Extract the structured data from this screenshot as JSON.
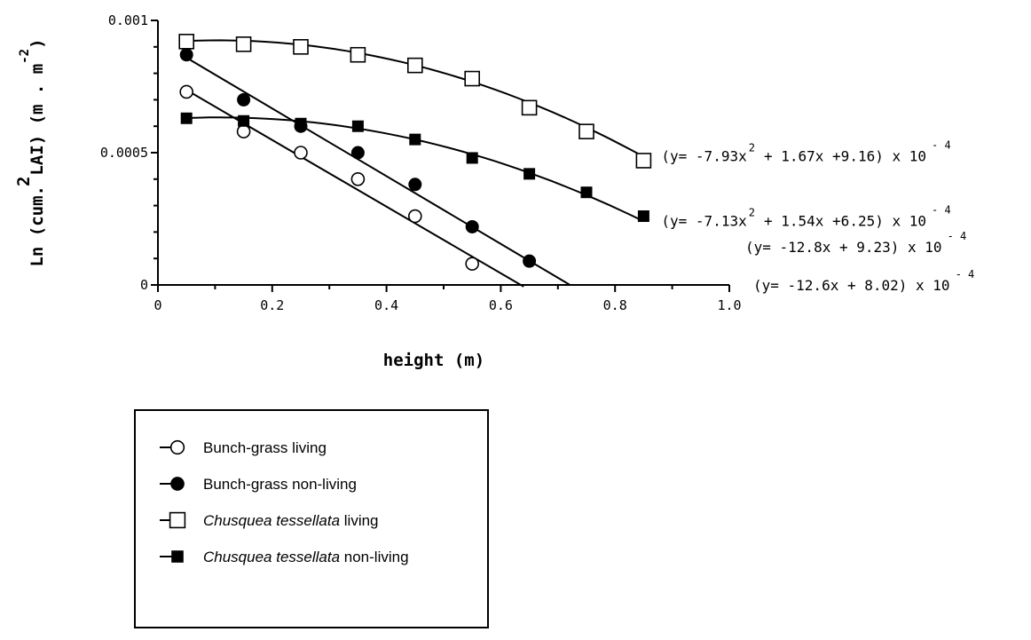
{
  "chart_data": {
    "type": "scatter",
    "xlabel": "height (m)",
    "ylabel": "Ln (cum. LAI) (m². m⁻²)",
    "ylabel_parts": {
      "main": "Ln (cum. LAI) (m . m",
      "close": ")",
      "sup1": "2",
      "sup2": "-2"
    },
    "xlim": [
      0,
      1.0
    ],
    "ylim": [
      0,
      0.001
    ],
    "x_ticks": [
      0,
      0.2,
      0.4,
      0.6,
      0.8,
      1.0
    ],
    "x_tick_labels": [
      "0",
      "0.2",
      "0.4",
      "0.6",
      "0.8",
      "1.0"
    ],
    "y_ticks": [
      0,
      0.0005,
      0.001
    ],
    "y_tick_labels": [
      "0",
      "0.0005",
      "0.001"
    ],
    "grid": false,
    "legend_position": "bottom-left",
    "series": [
      {
        "name": "Bunch-grass living",
        "name_parts": {
          "italic": "",
          "rest": "Bunch-grass living"
        },
        "marker": "open-circle",
        "x": [
          0.05,
          0.15,
          0.25,
          0.35,
          0.45,
          0.55
        ],
        "y": [
          0.00073,
          0.00058,
          0.0005,
          0.0004,
          0.00026,
          8e-05
        ],
        "fit_type": "linear",
        "fit": [
          0.0008,
          -0.00126
        ],
        "fit_x": [
          0.05,
          0.64
        ],
        "equation": {
          "text": "(y= -12.6x + 8.02) x 10",
          "exp": "- 4"
        }
      },
      {
        "name": "Bunch-grass non-living",
        "name_parts": {
          "italic": "",
          "rest": "Bunch-grass non-living"
        },
        "marker": "filled-circle",
        "x": [
          0.05,
          0.15,
          0.25,
          0.35,
          0.45,
          0.55,
          0.65
        ],
        "y": [
          0.00087,
          0.0007,
          0.0006,
          0.0005,
          0.00038,
          0.00022,
          9e-05
        ],
        "fit_type": "linear",
        "fit": [
          0.000923,
          -0.00128
        ],
        "fit_x": [
          0.05,
          0.722
        ],
        "equation": {
          "text": "(y= -12.8x + 9.23) x 10",
          "exp": "- 4"
        }
      },
      {
        "name": "Chusquea tessellata living",
        "name_parts": {
          "italic": "Chusquea tessellata",
          "rest": " living"
        },
        "marker": "open-square",
        "x": [
          0.05,
          0.15,
          0.25,
          0.35,
          0.45,
          0.55,
          0.65,
          0.75,
          0.85
        ],
        "y": [
          0.00092,
          0.00091,
          0.0009,
          0.00087,
          0.00083,
          0.00078,
          0.00067,
          0.00058,
          0.00047
        ],
        "fit_type": "quadratic",
        "fit": [
          0.000916,
          0.000167,
          -0.000793
        ],
        "fit_x": [
          0.05,
          0.85
        ],
        "equation": {
          "text": "(y= -7.93x  + 1.67x +9.16) x 10",
          "sup": "2",
          "exp": "- 4"
        }
      },
      {
        "name": "Chusquea tessellata non-living",
        "name_parts": {
          "italic": "Chusquea tessellata",
          "rest": " non-living"
        },
        "marker": "filled-square",
        "x": [
          0.05,
          0.15,
          0.25,
          0.35,
          0.45,
          0.55,
          0.65,
          0.75,
          0.85
        ],
        "y": [
          0.00063,
          0.00062,
          0.00061,
          0.0006,
          0.00055,
          0.00048,
          0.00042,
          0.00035,
          0.00026
        ],
        "fit_type": "quadratic",
        "fit": [
          0.000625,
          0.000154,
          -0.000713
        ],
        "fit_x": [
          0.05,
          0.85
        ],
        "equation": {
          "text": "(y= -7.13x  + 1.54x +6.25) x 10",
          "sup": "2",
          "exp": "- 4"
        }
      }
    ]
  }
}
